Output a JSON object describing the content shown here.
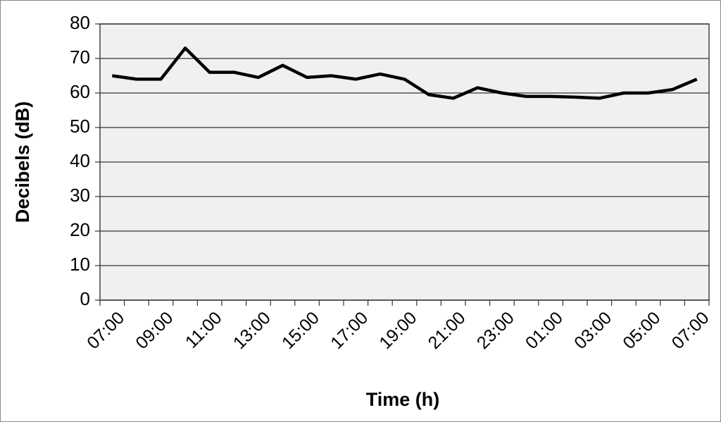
{
  "chart_data": {
    "type": "line",
    "x_label": "Time (h)",
    "y_label": "Decibels (dB)",
    "categories": [
      "07:00",
      null,
      "09:00",
      null,
      "11:00",
      null,
      "13:00",
      null,
      "15:00",
      null,
      "17:00",
      null,
      "19:00",
      null,
      "21:00",
      null,
      "23:00",
      null,
      "01:00",
      null,
      "03:00",
      null,
      "05:00",
      null,
      "07:00"
    ],
    "series": [
      {
        "color": "#000000",
        "values": [
          65,
          64,
          64,
          73,
          66,
          66,
          64.5,
          68,
          64.5,
          65,
          64,
          65.5,
          64,
          59.5,
          58.5,
          61.5,
          60,
          59,
          59,
          58.8,
          58.5,
          60,
          60,
          61,
          64
        ]
      }
    ],
    "ylim": [
      0,
      80
    ],
    "yticks": [
      0,
      10,
      20,
      30,
      40,
      50,
      60,
      70,
      80
    ],
    "grid": true
  }
}
